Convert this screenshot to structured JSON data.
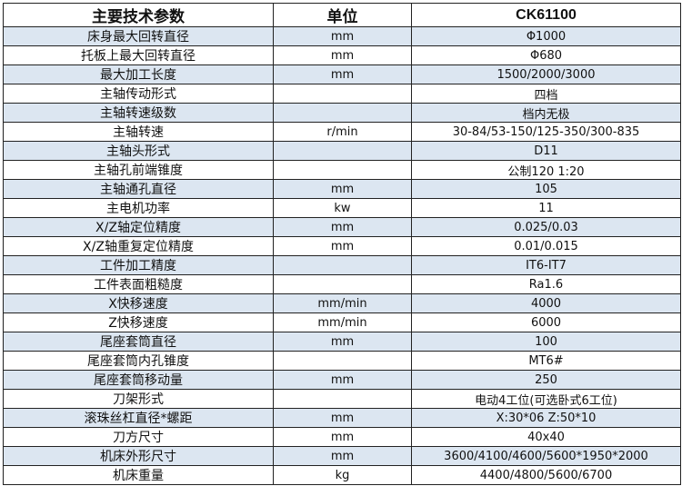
{
  "header": {
    "param": "主要技术参数",
    "unit": "单位",
    "model": "CK61100"
  },
  "rows": [
    {
      "param": "床身最大回转直径",
      "unit": "mm",
      "value": "Φ1000"
    },
    {
      "param": "托板上最大回转直径",
      "unit": "mm",
      "value": "Φ680"
    },
    {
      "param": "最大加工长度",
      "unit": "mm",
      "value": "1500/2000/3000"
    },
    {
      "param": "主轴传动形式",
      "unit": "",
      "value": "四档"
    },
    {
      "param": "主轴转速级数",
      "unit": "",
      "value": "档内无极"
    },
    {
      "param": "主轴转速",
      "unit": "r/min",
      "value": "30-84/53-150/125-350/300-835"
    },
    {
      "param": "主轴头形式",
      "unit": "",
      "value": "D11"
    },
    {
      "param": "主轴孔前端锥度",
      "unit": "",
      "value": "公制120  1:20"
    },
    {
      "param": "主轴通孔直径",
      "unit": "mm",
      "value": "105"
    },
    {
      "param": "主电机功率",
      "unit": "kw",
      "value": "11"
    },
    {
      "param": "X/Z轴定位精度",
      "unit": "mm",
      "value": "0.025/0.03"
    },
    {
      "param": "X/Z轴重复定位精度",
      "unit": "mm",
      "value": "0.01/0.015"
    },
    {
      "param": "工件加工精度",
      "unit": "",
      "value": "IT6-IT7"
    },
    {
      "param": "工件表面粗糙度",
      "unit": "",
      "value": "Ra1.6"
    },
    {
      "param": "X快移速度",
      "unit": "mm/min",
      "value": "4000"
    },
    {
      "param": "Z快移速度",
      "unit": "mm/min",
      "value": "6000"
    },
    {
      "param": "尾座套筒直径",
      "unit": "mm",
      "value": "100"
    },
    {
      "param": "尾座套筒内孔锥度",
      "unit": "",
      "value": "MT6#"
    },
    {
      "param": "尾座套筒移动量",
      "unit": "mm",
      "value": "250"
    },
    {
      "param": "刀架形式",
      "unit": "",
      "value": "电动4工位(可选卧式6工位)"
    },
    {
      "param": "滚珠丝杠直径*螺距",
      "unit": "mm",
      "value": "X:30*06 Z:50*10"
    },
    {
      "param": "刀方尺寸",
      "unit": "mm",
      "value": "40x40"
    },
    {
      "param": "机床外形尺寸",
      "unit": "mm",
      "value": "3600/4100/4600/5600*1950*2000"
    },
    {
      "param": "机床重量",
      "unit": "kg",
      "value": "4400/4800/5600/6700"
    }
  ],
  "colors": {
    "stripe": "#dce6f1",
    "border": "#222222"
  }
}
